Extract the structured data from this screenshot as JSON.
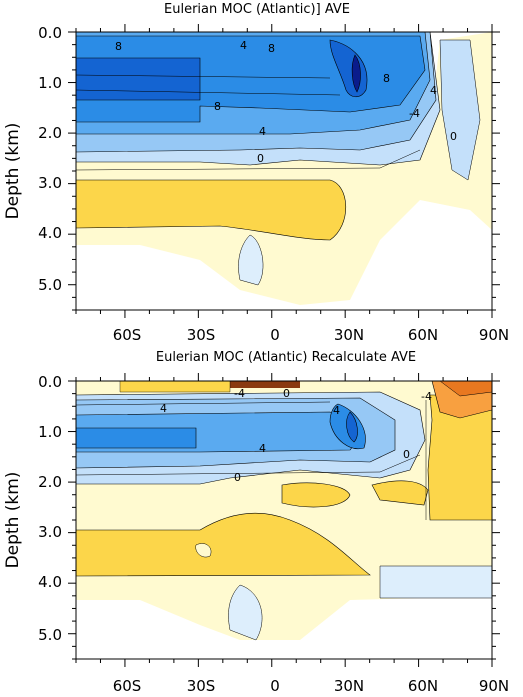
{
  "colors": {
    "deep_blue": "#0a1c8c",
    "blue": "#1464d2",
    "mid_blue": "#2b8ce6",
    "light_blue": "#5aaaf0",
    "pale_blue": "#96c8f5",
    "paler_blue": "#c4e0fa",
    "lightest_blue": "#ddeefc",
    "cream": "#fffad0",
    "yellow": "#fcd64a",
    "orange": "#f8a040",
    "dark_orange": "#e87820",
    "brown": "#8a3a10"
  },
  "chart_data": [
    {
      "type": "heatmap",
      "title": "Eulerian MOC (Atlantic)] AVE",
      "ylabel": "Depth (km)",
      "xlabel": "",
      "y_ticks": [
        "0.0",
        "1.0",
        "2.0",
        "3.0",
        "4.0",
        "5.0"
      ],
      "x_ticks": [
        "60S",
        "30S",
        "0",
        "30N",
        "60N",
        "90N"
      ],
      "y_range_km": [
        0,
        5.5
      ],
      "x_range_deg": [
        -80,
        90
      ],
      "contour_labels": [
        "8",
        "4",
        "8",
        "8",
        "8",
        "4",
        "-4",
        "4",
        "0",
        "0"
      ]
    },
    {
      "type": "heatmap",
      "title": "Eulerian MOC (Atlantic) Recalculate  AVE",
      "ylabel": "Depth (km)",
      "xlabel": "",
      "y_ticks": [
        "0.0",
        "1.0",
        "2.0",
        "3.0",
        "4.0",
        "5.0"
      ],
      "x_ticks": [
        "60S",
        "30S",
        "0",
        "30N",
        "60N",
        "90N"
      ],
      "y_range_km": [
        0,
        5.5
      ],
      "x_range_deg": [
        -80,
        90
      ],
      "contour_labels": [
        "-4",
        "0",
        "4",
        "4",
        "4",
        "0",
        "0",
        "-4"
      ]
    }
  ]
}
